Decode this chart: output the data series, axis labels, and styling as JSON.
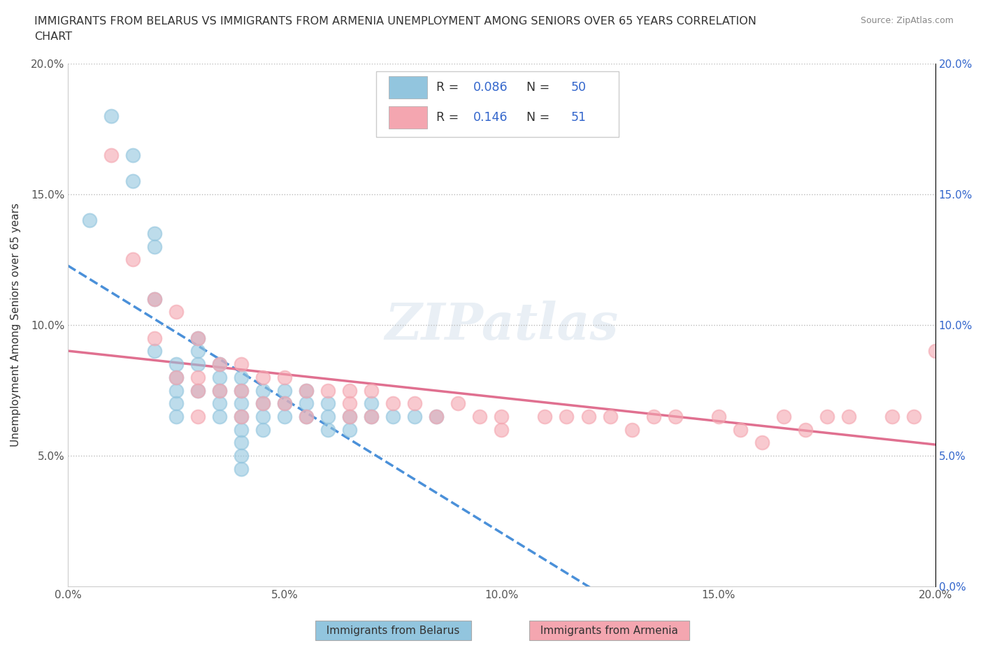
{
  "title_line1": "IMMIGRANTS FROM BELARUS VS IMMIGRANTS FROM ARMENIA UNEMPLOYMENT AMONG SENIORS OVER 65 YEARS CORRELATION",
  "title_line2": "CHART",
  "source": "Source: ZipAtlas.com",
  "ylabel": "Unemployment Among Seniors over 65 years",
  "xlim": [
    0.0,
    0.2
  ],
  "ylim": [
    0.0,
    0.2
  ],
  "xticks": [
    0.0,
    0.05,
    0.1,
    0.15,
    0.2
  ],
  "yticks": [
    0.0,
    0.05,
    0.1,
    0.15,
    0.2
  ],
  "xticklabels": [
    "0.0%",
    "5.0%",
    "10.0%",
    "15.0%",
    "20.0%"
  ],
  "yticklabels": [
    "",
    "5.0%",
    "10.0%",
    "15.0%",
    "20.0%"
  ],
  "right_yticklabels": [
    "0.0%",
    "5.0%",
    "10.0%",
    "15.0%",
    "20.0%"
  ],
  "R_belarus": 0.086,
  "N_belarus": 50,
  "R_armenia": 0.146,
  "N_armenia": 51,
  "color_belarus": "#92C5DE",
  "color_armenia": "#F4A6B0",
  "trendline_color_belarus": "#4A90D9",
  "trendline_color_armenia": "#E07090",
  "legend_R_color": "#3366CC",
  "background_color": "#FFFFFF",
  "watermark": "ZIPatlas",
  "belarus_x": [
    0.005,
    0.01,
    0.015,
    0.015,
    0.02,
    0.02,
    0.02,
    0.02,
    0.025,
    0.025,
    0.025,
    0.025,
    0.025,
    0.03,
    0.03,
    0.03,
    0.03,
    0.035,
    0.035,
    0.035,
    0.035,
    0.035,
    0.04,
    0.04,
    0.04,
    0.04,
    0.04,
    0.04,
    0.04,
    0.04,
    0.045,
    0.045,
    0.045,
    0.045,
    0.05,
    0.05,
    0.05,
    0.055,
    0.055,
    0.055,
    0.06,
    0.06,
    0.06,
    0.065,
    0.065,
    0.07,
    0.07,
    0.075,
    0.08,
    0.085
  ],
  "belarus_y": [
    0.14,
    0.18,
    0.165,
    0.155,
    0.135,
    0.13,
    0.11,
    0.09,
    0.085,
    0.08,
    0.075,
    0.07,
    0.065,
    0.095,
    0.09,
    0.085,
    0.075,
    0.085,
    0.08,
    0.075,
    0.07,
    0.065,
    0.08,
    0.075,
    0.07,
    0.065,
    0.06,
    0.055,
    0.05,
    0.045,
    0.075,
    0.07,
    0.065,
    0.06,
    0.075,
    0.07,
    0.065,
    0.075,
    0.07,
    0.065,
    0.07,
    0.065,
    0.06,
    0.065,
    0.06,
    0.07,
    0.065,
    0.065,
    0.065,
    0.065
  ],
  "armenia_x": [
    0.01,
    0.015,
    0.02,
    0.02,
    0.025,
    0.025,
    0.03,
    0.03,
    0.03,
    0.03,
    0.035,
    0.035,
    0.04,
    0.04,
    0.04,
    0.045,
    0.045,
    0.05,
    0.05,
    0.055,
    0.055,
    0.06,
    0.065,
    0.065,
    0.065,
    0.07,
    0.07,
    0.075,
    0.08,
    0.085,
    0.09,
    0.095,
    0.1,
    0.1,
    0.11,
    0.115,
    0.12,
    0.125,
    0.13,
    0.135,
    0.14,
    0.15,
    0.155,
    0.16,
    0.165,
    0.17,
    0.175,
    0.18,
    0.19,
    0.195,
    0.2
  ],
  "armenia_y": [
    0.165,
    0.125,
    0.11,
    0.095,
    0.105,
    0.08,
    0.095,
    0.08,
    0.075,
    0.065,
    0.085,
    0.075,
    0.085,
    0.075,
    0.065,
    0.08,
    0.07,
    0.08,
    0.07,
    0.075,
    0.065,
    0.075,
    0.075,
    0.07,
    0.065,
    0.075,
    0.065,
    0.07,
    0.07,
    0.065,
    0.07,
    0.065,
    0.065,
    0.06,
    0.065,
    0.065,
    0.065,
    0.065,
    0.06,
    0.065,
    0.065,
    0.065,
    0.06,
    0.055,
    0.065,
    0.06,
    0.065,
    0.065,
    0.065,
    0.065,
    0.09
  ]
}
